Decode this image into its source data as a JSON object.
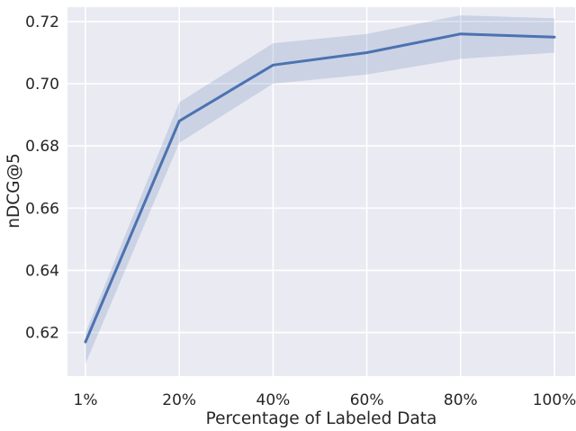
{
  "chart_data": {
    "type": "line",
    "title": "",
    "xlabel": "Percentage of Labeled Data",
    "ylabel": "nDCG@5",
    "categories": [
      "1%",
      "20%",
      "40%",
      "60%",
      "80%",
      "100%"
    ],
    "series": [
      {
        "name": "nDCG@5",
        "values": [
          0.617,
          0.688,
          0.706,
          0.71,
          0.716,
          0.715
        ],
        "ci_lower": [
          0.61,
          0.681,
          0.7,
          0.703,
          0.708,
          0.71
        ],
        "ci_upper": [
          0.62,
          0.694,
          0.713,
          0.716,
          0.722,
          0.721
        ]
      }
    ],
    "yticks": [
      0.62,
      0.64,
      0.66,
      0.68,
      0.7,
      0.72
    ],
    "ytick_labels": [
      "0.62",
      "0.64",
      "0.66",
      "0.68",
      "0.70",
      "0.72"
    ],
    "ylim": [
      0.606,
      0.7246
    ],
    "grid": true,
    "legend_position": "none",
    "style": {
      "line_color": "#4C72B0",
      "band_color": "#4C72B0",
      "band_opacity": 0.2,
      "plot_background": "#EAEAF2",
      "grid_color": "#FFFFFF",
      "text_color": "#262626",
      "figure_background": "#FFFFFF"
    }
  }
}
